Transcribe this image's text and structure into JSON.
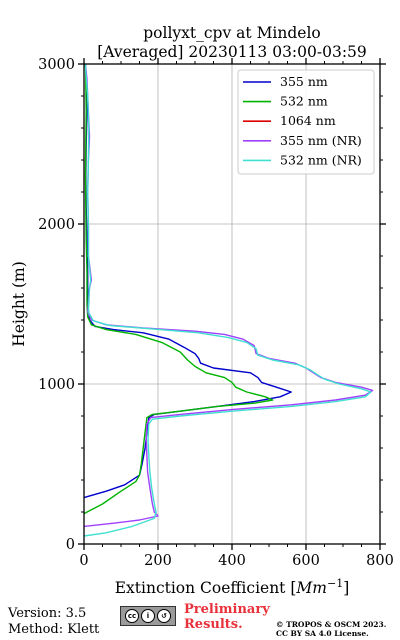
{
  "chart_data": {
    "type": "line",
    "title": "pollyxt_cpv at Mindelo",
    "subtitle": "[Averaged] 20230113 03:00-03:59",
    "xlabel": "Extinction Coefficient",
    "xlabel_unit": "Mm",
    "xlabel_exp": "−1",
    "ylabel": "Height (m)",
    "xlim": [
      0,
      800
    ],
    "ylim": [
      0,
      3000
    ],
    "xticks": [
      0,
      200,
      400,
      600,
      800
    ],
    "yticks": [
      0,
      1000,
      2000,
      3000
    ],
    "grid": true,
    "legend_position": "top-right",
    "series": [
      {
        "name": "355 nm",
        "color": "#0000cc",
        "points": [
          [
            0,
            290
          ],
          [
            60,
            330
          ],
          [
            110,
            370
          ],
          [
            150,
            430
          ],
          [
            157,
            500
          ],
          [
            165,
            600
          ],
          [
            170,
            700
          ],
          [
            175,
            790
          ],
          [
            190,
            810
          ],
          [
            260,
            830
          ],
          [
            360,
            860
          ],
          [
            460,
            890
          ],
          [
            530,
            920
          ],
          [
            560,
            950
          ],
          [
            520,
            980
          ],
          [
            480,
            1010
          ],
          [
            470,
            1040
          ],
          [
            450,
            1070
          ],
          [
            350,
            1100
          ],
          [
            315,
            1130
          ],
          [
            310,
            1160
          ],
          [
            300,
            1190
          ],
          [
            270,
            1230
          ],
          [
            230,
            1280
          ],
          [
            160,
            1320
          ],
          [
            80,
            1340
          ],
          [
            30,
            1360
          ],
          [
            15,
            1400
          ],
          [
            10,
            1500
          ],
          [
            10,
            1700
          ],
          [
            8,
            1900
          ],
          [
            6,
            2100
          ],
          [
            5,
            2300
          ],
          [
            6,
            2500
          ],
          [
            8,
            2700
          ],
          [
            6,
            2900
          ],
          [
            4,
            3000
          ]
        ]
      },
      {
        "name": "532 nm",
        "color": "#00b400",
        "points": [
          [
            0,
            190
          ],
          [
            50,
            250
          ],
          [
            100,
            330
          ],
          [
            140,
            390
          ],
          [
            150,
            430
          ],
          [
            155,
            500
          ],
          [
            160,
            600
          ],
          [
            165,
            700
          ],
          [
            170,
            790
          ],
          [
            185,
            810
          ],
          [
            260,
            830
          ],
          [
            360,
            860
          ],
          [
            460,
            880
          ],
          [
            510,
            900
          ],
          [
            490,
            920
          ],
          [
            440,
            950
          ],
          [
            410,
            980
          ],
          [
            400,
            1010
          ],
          [
            380,
            1040
          ],
          [
            330,
            1070
          ],
          [
            300,
            1110
          ],
          [
            280,
            1150
          ],
          [
            260,
            1200
          ],
          [
            210,
            1260
          ],
          [
            140,
            1310
          ],
          [
            60,
            1340
          ],
          [
            20,
            1370
          ],
          [
            10,
            1420
          ],
          [
            8,
            1500
          ],
          [
            8,
            1700
          ],
          [
            6,
            1900
          ],
          [
            5,
            2100
          ],
          [
            4,
            2300
          ],
          [
            5,
            2500
          ],
          [
            6,
            2700
          ],
          [
            5,
            2900
          ],
          [
            4,
            3000
          ]
        ]
      },
      {
        "name": "1064 nm",
        "color": "#dd0000",
        "points": []
      },
      {
        "name": "355 nm (NR)",
        "color": "#a040ff",
        "points": [
          [
            0,
            110
          ],
          [
            80,
            130
          ],
          [
            150,
            150
          ],
          [
            200,
            175
          ],
          [
            190,
            200
          ],
          [
            185,
            250
          ],
          [
            178,
            350
          ],
          [
            172,
            450
          ],
          [
            170,
            550
          ],
          [
            168,
            650
          ],
          [
            170,
            750
          ],
          [
            180,
            790
          ],
          [
            260,
            810
          ],
          [
            400,
            840
          ],
          [
            560,
            870
          ],
          [
            680,
            900
          ],
          [
            760,
            930
          ],
          [
            780,
            960
          ],
          [
            750,
            980
          ],
          [
            680,
            1010
          ],
          [
            640,
            1040
          ],
          [
            620,
            1070
          ],
          [
            600,
            1100
          ],
          [
            570,
            1130
          ],
          [
            500,
            1160
          ],
          [
            465,
            1190
          ],
          [
            460,
            1240
          ],
          [
            430,
            1280
          ],
          [
            380,
            1310
          ],
          [
            300,
            1330
          ],
          [
            160,
            1350
          ],
          [
            60,
            1370
          ],
          [
            20,
            1400
          ],
          [
            10,
            1450
          ],
          [
            15,
            1600
          ],
          [
            20,
            1650
          ],
          [
            12,
            1800
          ],
          [
            12,
            2000
          ],
          [
            10,
            2200
          ],
          [
            12,
            2400
          ],
          [
            14,
            2500
          ],
          [
            15,
            2550
          ],
          [
            12,
            2700
          ],
          [
            8,
            2900
          ],
          [
            4,
            3000
          ]
        ]
      },
      {
        "name": "532 nm (NR)",
        "color": "#40e0d0",
        "points": [
          [
            0,
            50
          ],
          [
            60,
            70
          ],
          [
            130,
            110
          ],
          [
            190,
            160
          ],
          [
            195,
            200
          ],
          [
            190,
            250
          ],
          [
            183,
            350
          ],
          [
            178,
            450
          ],
          [
            175,
            550
          ],
          [
            173,
            650
          ],
          [
            175,
            750
          ],
          [
            185,
            780
          ],
          [
            260,
            800
          ],
          [
            400,
            830
          ],
          [
            560,
            860
          ],
          [
            680,
            890
          ],
          [
            760,
            920
          ],
          [
            775,
            950
          ],
          [
            750,
            970
          ],
          [
            690,
            1000
          ],
          [
            650,
            1030
          ],
          [
            630,
            1060
          ],
          [
            610,
            1090
          ],
          [
            580,
            1120
          ],
          [
            510,
            1150
          ],
          [
            470,
            1180
          ],
          [
            465,
            1220
          ],
          [
            440,
            1260
          ],
          [
            390,
            1290
          ],
          [
            310,
            1320
          ],
          [
            180,
            1345
          ],
          [
            70,
            1365
          ],
          [
            25,
            1395
          ],
          [
            12,
            1450
          ],
          [
            15,
            1600
          ],
          [
            18,
            1650
          ],
          [
            12,
            1800
          ],
          [
            12,
            2000
          ],
          [
            10,
            2200
          ],
          [
            12,
            2400
          ],
          [
            13,
            2600
          ],
          [
            10,
            2800
          ],
          [
            5,
            2950
          ],
          [
            4,
            3000
          ]
        ]
      }
    ]
  },
  "footer": {
    "version": "Version: 3.5",
    "method": "Method: Klett",
    "preliminary_line1": "Preliminary",
    "preliminary_line2": "Results.",
    "copyright_line1": "© TROPOS & OSCM 2023.",
    "copyright_line2": "CC BY SA 4.0 License."
  }
}
